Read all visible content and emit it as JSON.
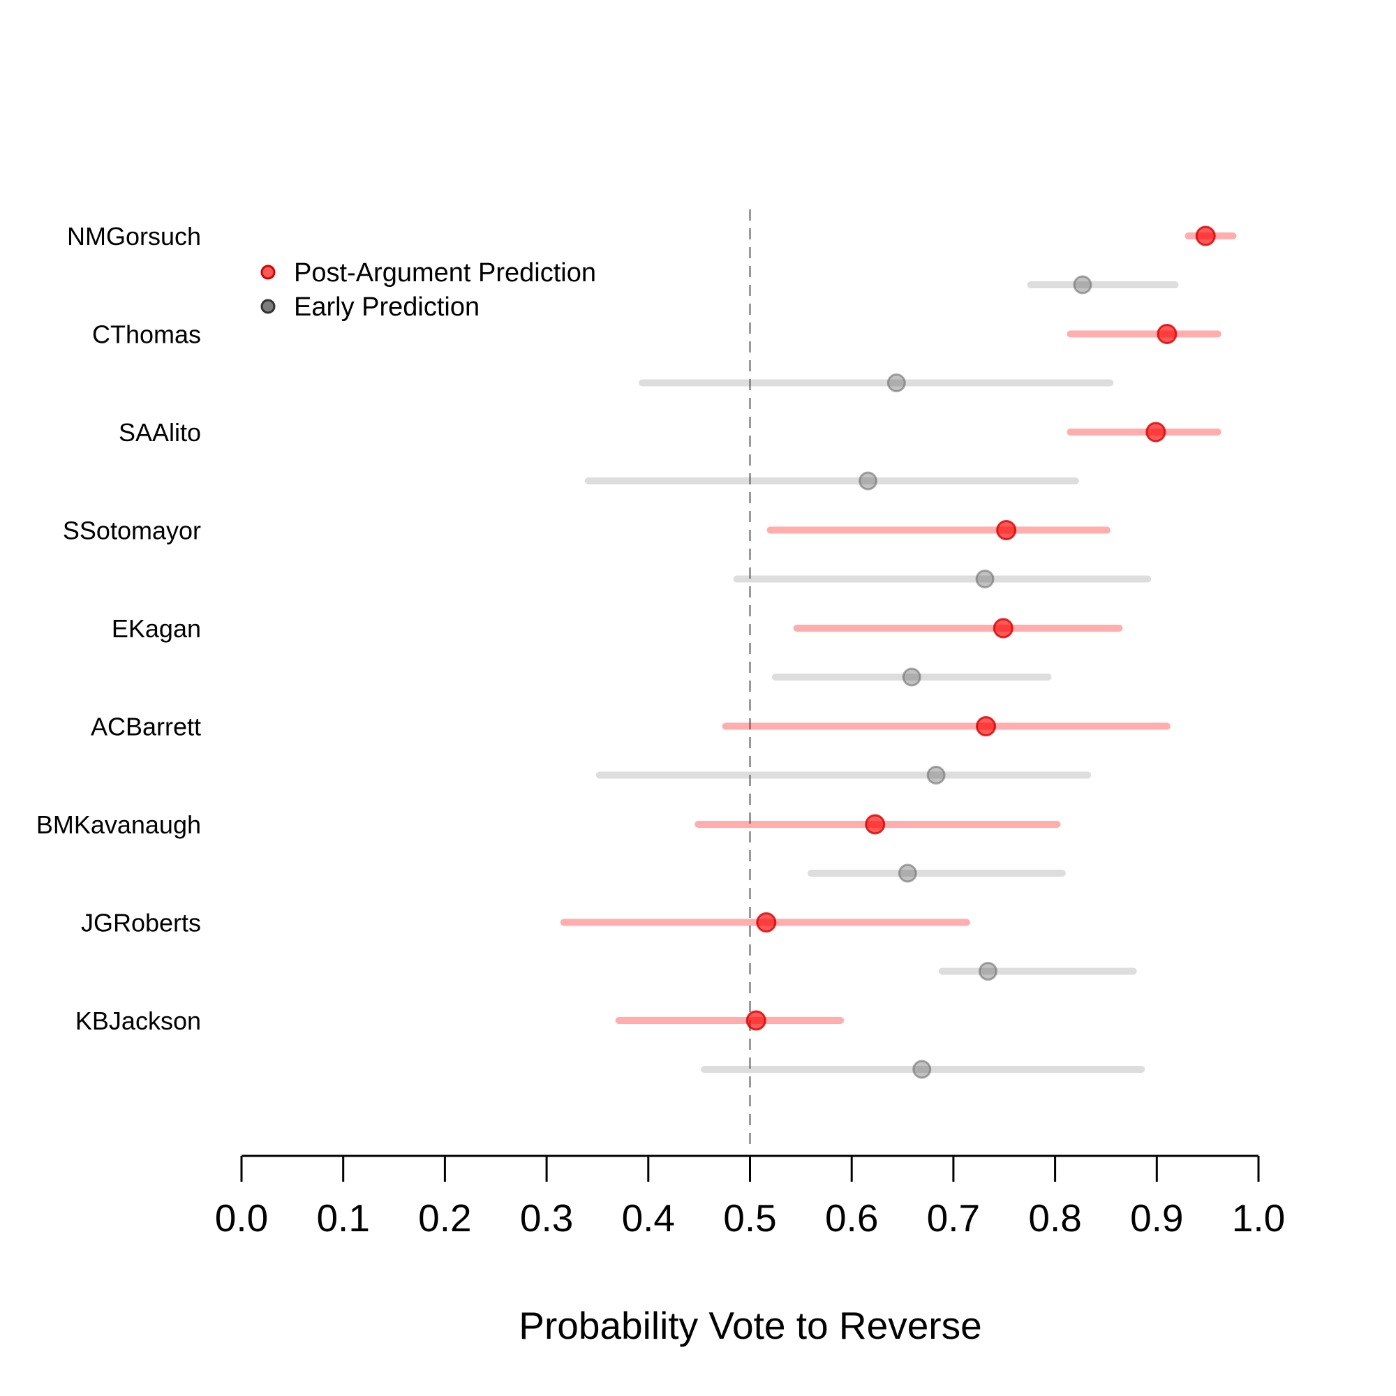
{
  "chart_data": {
    "type": "dot-interval",
    "xlabel": "Probability Vote to Reverse",
    "xlim": [
      0.0,
      1.0
    ],
    "ticks": [
      "0.0",
      "0.1",
      "0.2",
      "0.3",
      "0.4",
      "0.5",
      "0.6",
      "0.7",
      "0.8",
      "0.9",
      "1.0"
    ],
    "reference_line": 0.5,
    "legend": {
      "position": "top-left",
      "entries": [
        {
          "name": "Post-Argument Prediction",
          "color": "#ff0000"
        },
        {
          "name": "Early Prediction",
          "color": "#666666"
        }
      ]
    },
    "justices": [
      {
        "name": "NMGorsuch",
        "post": {
          "estimate": 0.948,
          "low": 0.931,
          "high": 0.975
        },
        "early": {
          "estimate": 0.827,
          "low": 0.776,
          "high": 0.918
        }
      },
      {
        "name": "CThomas",
        "post": {
          "estimate": 0.91,
          "low": 0.815,
          "high": 0.96
        },
        "early": {
          "estimate": 0.644,
          "low": 0.394,
          "high": 0.854
        }
      },
      {
        "name": "SAAlito",
        "post": {
          "estimate": 0.899,
          "low": 0.815,
          "high": 0.96
        },
        "early": {
          "estimate": 0.616,
          "low": 0.341,
          "high": 0.82
        }
      },
      {
        "name": "SSotomayor",
        "post": {
          "estimate": 0.752,
          "low": 0.52,
          "high": 0.851
        },
        "early": {
          "estimate": 0.731,
          "low": 0.487,
          "high": 0.891
        }
      },
      {
        "name": "EKagan",
        "post": {
          "estimate": 0.749,
          "low": 0.546,
          "high": 0.863
        },
        "early": {
          "estimate": 0.659,
          "low": 0.525,
          "high": 0.793
        }
      },
      {
        "name": "ACBarrett",
        "post": {
          "estimate": 0.732,
          "low": 0.476,
          "high": 0.91
        },
        "early": {
          "estimate": 0.683,
          "low": 0.352,
          "high": 0.832
        }
      },
      {
        "name": "BMKavanaugh",
        "post": {
          "estimate": 0.623,
          "low": 0.449,
          "high": 0.802
        },
        "early": {
          "estimate": 0.655,
          "low": 0.56,
          "high": 0.807
        }
      },
      {
        "name": "JGRoberts",
        "post": {
          "estimate": 0.516,
          "low": 0.317,
          "high": 0.713
        },
        "early": {
          "estimate": 0.734,
          "low": 0.689,
          "high": 0.877
        }
      },
      {
        "name": "KBJackson",
        "post": {
          "estimate": 0.506,
          "low": 0.371,
          "high": 0.589
        },
        "early": {
          "estimate": 0.669,
          "low": 0.455,
          "high": 0.885
        }
      }
    ]
  }
}
